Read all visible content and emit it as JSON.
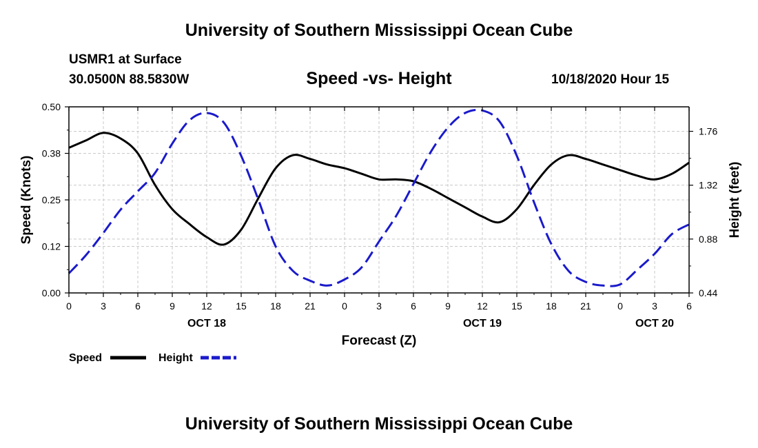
{
  "header": {
    "title": "University of Southern Mississippi Ocean Cube",
    "station": "USMR1 at Surface",
    "coords": "30.0500N 88.5830W",
    "datetime": "10/18/2020 Hour 15"
  },
  "footer": {
    "title": "University of Southern Mississippi Ocean Cube"
  },
  "chart_data": {
    "type": "line",
    "title": "Speed -vs- Height",
    "xlabel": "Forecast (Z)",
    "ylabel": "Speed (Knots)",
    "y2label": "Height (feet)",
    "grid": true,
    "legend_position": "bottom-left",
    "x_range": [
      0,
      54
    ],
    "x_tick_hours": [
      0,
      3,
      6,
      9,
      12,
      15,
      18,
      21,
      24,
      27,
      30,
      33,
      36,
      39,
      42,
      45,
      48,
      51,
      54
    ],
    "x_tick_labels": [
      "0",
      "3",
      "6",
      "9",
      "12",
      "15",
      "18",
      "21",
      "0",
      "3",
      "6",
      "9",
      "12",
      "15",
      "18",
      "21",
      "0",
      "3",
      "6"
    ],
    "date_labels": [
      {
        "hour": 12,
        "label": "OCT 18"
      },
      {
        "hour": 36,
        "label": "OCT 19"
      },
      {
        "hour": 51,
        "label": "OCT 20"
      }
    ],
    "y_range": [
      0,
      0.5
    ],
    "y_ticks": [
      0,
      0.125,
      0.25,
      0.375,
      0.5
    ],
    "y_tick_labels": [
      "0.00",
      "0.12",
      "0.25",
      "0.38",
      "0.50"
    ],
    "y2_range": [
      0.44,
      1.96
    ],
    "y2_ticks": [
      0.44,
      0.88,
      1.32,
      1.76
    ],
    "y2_tick_labels": [
      "0.44",
      "0.88",
      "1.32",
      "1.76"
    ],
    "series": [
      {
        "name": "Speed",
        "axis": "left",
        "color": "#000000",
        "dash": "solid",
        "x": [
          0,
          1.5,
          3,
          4.5,
          6,
          7.5,
          9,
          10.5,
          12,
          13.5,
          15,
          16.5,
          18,
          19.5,
          21,
          22.5,
          24,
          25.5,
          27,
          28.5,
          30,
          31.5,
          33,
          34.5,
          36,
          37.5,
          39,
          40.5,
          42,
          43.5,
          45,
          46.5,
          48,
          49.5,
          51,
          52.5,
          54
        ],
        "values": [
          0.39,
          0.41,
          0.43,
          0.415,
          0.375,
          0.29,
          0.225,
          0.185,
          0.15,
          0.13,
          0.17,
          0.255,
          0.335,
          0.37,
          0.36,
          0.345,
          0.335,
          0.32,
          0.305,
          0.305,
          0.3,
          0.28,
          0.255,
          0.23,
          0.205,
          0.19,
          0.225,
          0.29,
          0.345,
          0.37,
          0.36,
          0.345,
          0.33,
          0.315,
          0.305,
          0.32,
          0.35
        ]
      },
      {
        "name": "Height",
        "axis": "right",
        "color": "#1a1acc",
        "dash": "dashed",
        "x": [
          0,
          1.5,
          3,
          4.5,
          6,
          7.5,
          9,
          10.5,
          12,
          13.5,
          15,
          16.5,
          18,
          19.5,
          21,
          22.5,
          24,
          25.5,
          27,
          28.5,
          30,
          31.5,
          33,
          34.5,
          36,
          37.5,
          39,
          40.5,
          42,
          43.5,
          45,
          46.5,
          48,
          49.5,
          51,
          52.5,
          54
        ],
        "values": [
          0.6,
          0.75,
          0.93,
          1.12,
          1.27,
          1.42,
          1.66,
          1.85,
          1.91,
          1.83,
          1.56,
          1.2,
          0.82,
          0.62,
          0.54,
          0.5,
          0.55,
          0.65,
          0.86,
          1.07,
          1.33,
          1.59,
          1.79,
          1.91,
          1.93,
          1.84,
          1.56,
          1.18,
          0.84,
          0.62,
          0.53,
          0.5,
          0.51,
          0.63,
          0.76,
          0.92,
          1.0
        ]
      }
    ]
  }
}
